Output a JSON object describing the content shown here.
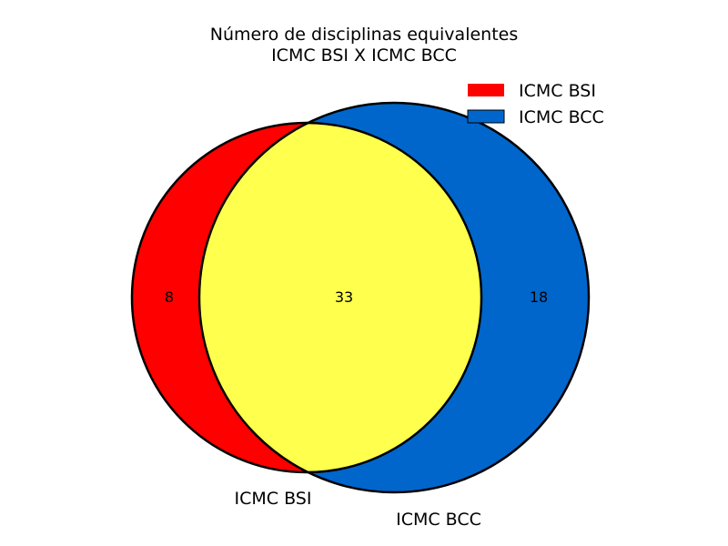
{
  "title": {
    "line1": "Número de disciplinas equivalentes",
    "line2": "ICMC BSI X ICMC BCC"
  },
  "sets": [
    {
      "name": "ICMC BSI",
      "only_count": "8",
      "color": "#ff0000"
    },
    {
      "name": "ICMC BCC",
      "only_count": "18",
      "color": "#0066cc"
    }
  ],
  "intersection": {
    "count": "33",
    "color": "#ffff4d"
  },
  "legend": {
    "items": [
      {
        "label": "ICMC BSI",
        "color": "#ff0000"
      },
      {
        "label": "ICMC BCC",
        "color": "#0066cc"
      }
    ]
  }
}
